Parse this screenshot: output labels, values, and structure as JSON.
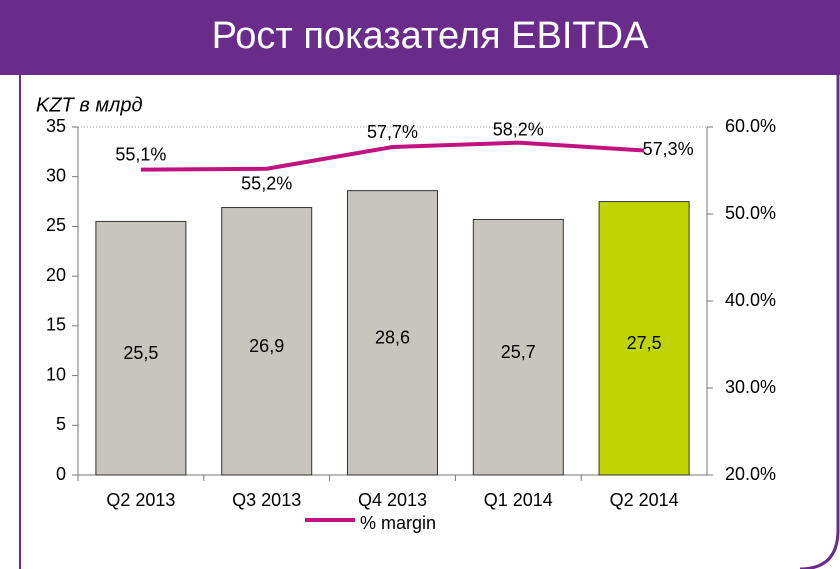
{
  "chart_data": {
    "type": "bar_line",
    "title": "Рост показателя EBITDA",
    "y_axis_label": "KZT в млрд",
    "categories": [
      "Q2 2013",
      "Q3 2013",
      "Q4 2013",
      "Q1 2014",
      "Q2 2014"
    ],
    "series": [
      {
        "name": null,
        "type": "bar",
        "colors": [
          "#c8c4be",
          "#c8c4be",
          "#c8c4be",
          "#c8c4be",
          "#c0d400"
        ],
        "values": [
          25.5,
          26.9,
          28.6,
          25.7,
          27.5
        ],
        "value_labels": [
          "25,5",
          "26,9",
          "28,6",
          "25,7",
          "27,5"
        ]
      },
      {
        "name": "% margin",
        "type": "line",
        "axis": "y2",
        "color": "#c0137f",
        "values": [
          55.1,
          55.2,
          57.7,
          58.2,
          57.3
        ],
        "value_labels": [
          "55,1%",
          "55,2%",
          "57,7%",
          "58,2%",
          "57,3%"
        ]
      }
    ],
    "ylim": [
      0,
      35
    ],
    "yticks": [
      0,
      5,
      10,
      15,
      20,
      25,
      30,
      35
    ],
    "y2lim": [
      20,
      60
    ],
    "y2ticks": [
      {
        "value": 20,
        "label": "20.0%"
      },
      {
        "value": 30,
        "label": "30.0%"
      },
      {
        "value": 40,
        "label": "40.0%"
      },
      {
        "value": 50,
        "label": "50.0%"
      },
      {
        "value": 60,
        "label": "60.0%"
      }
    ],
    "legend": "bottom"
  }
}
